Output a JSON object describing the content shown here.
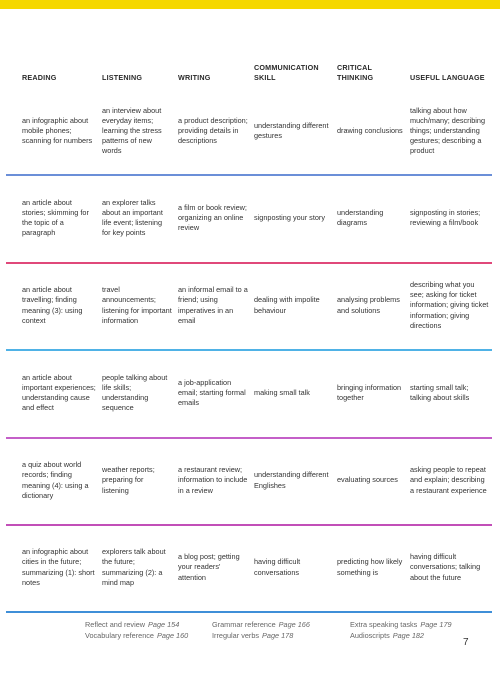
{
  "header": {
    "columns": [
      "READING",
      "LISTENING",
      "WRITING",
      "COMMUNICATION SKILL",
      "CRITICAL THINKING",
      "USEFUL LANGUAGE"
    ]
  },
  "table": {
    "rows": [
      [
        "an infographic about mobile phones; scanning for numbers",
        "an interview about everyday items; learning the stress patterns of new words",
        "a product description; providing details in descriptions",
        "understanding different gestures",
        "drawing conclusions",
        "talking about how much/many; describing things; understanding gestures; describing a product"
      ],
      [
        "an article about stories; skimming for the topic of a paragraph",
        "an explorer talks about an important life event; listening for key points",
        "a film or book review; organizing an online review",
        "signposting your story",
        "understanding diagrams",
        "signposting in stories; reviewing a film/book"
      ],
      [
        "an article about travelling; finding meaning (3): using context",
        "travel announcements; listening for important information",
        "an informal email to a friend; using imperatives in an email",
        "dealing with impolite behaviour",
        "analysing problems and solutions",
        "describing what you see; asking for ticket information; giving ticket information; giving directions"
      ],
      [
        "an article about important experiences; understanding cause and effect",
        "people talking about life skills; understanding sequence",
        "a job-application email; starting formal emails",
        "making small talk",
        "bringing information together",
        "starting small talk; talking about skills"
      ],
      [
        "a quiz about world records; finding meaning (4): using a dictionary",
        "weather reports; preparing for listening",
        "a restaurant review; information to include in a review",
        "understanding different Englishes",
        "evaluating sources",
        "asking people to repeat and explain; describing a restaurant experience"
      ],
      [
        "an infographic about cities in the future; summarizing (1): short notes",
        "explorers talk about the future; summarizing (2): a mind map",
        "a blog post; getting your readers' attention",
        "having difficult conversations",
        "predicting how likely something is",
        "having difficult conversations; talking about the future"
      ]
    ]
  },
  "footer": {
    "links": [
      {
        "label": "Reflect and review",
        "page": "Page 154"
      },
      {
        "label": "Vocabulary reference",
        "page": "Page 160"
      },
      {
        "label": "Grammar reference",
        "page": "Page 166"
      },
      {
        "label": "Irregular verbs",
        "page": "Page 178"
      },
      {
        "label": "Extra speaking tasks",
        "page": "Page 179"
      },
      {
        "label": "Audioscripts",
        "page": "Page 182"
      }
    ],
    "page_number": "7"
  }
}
